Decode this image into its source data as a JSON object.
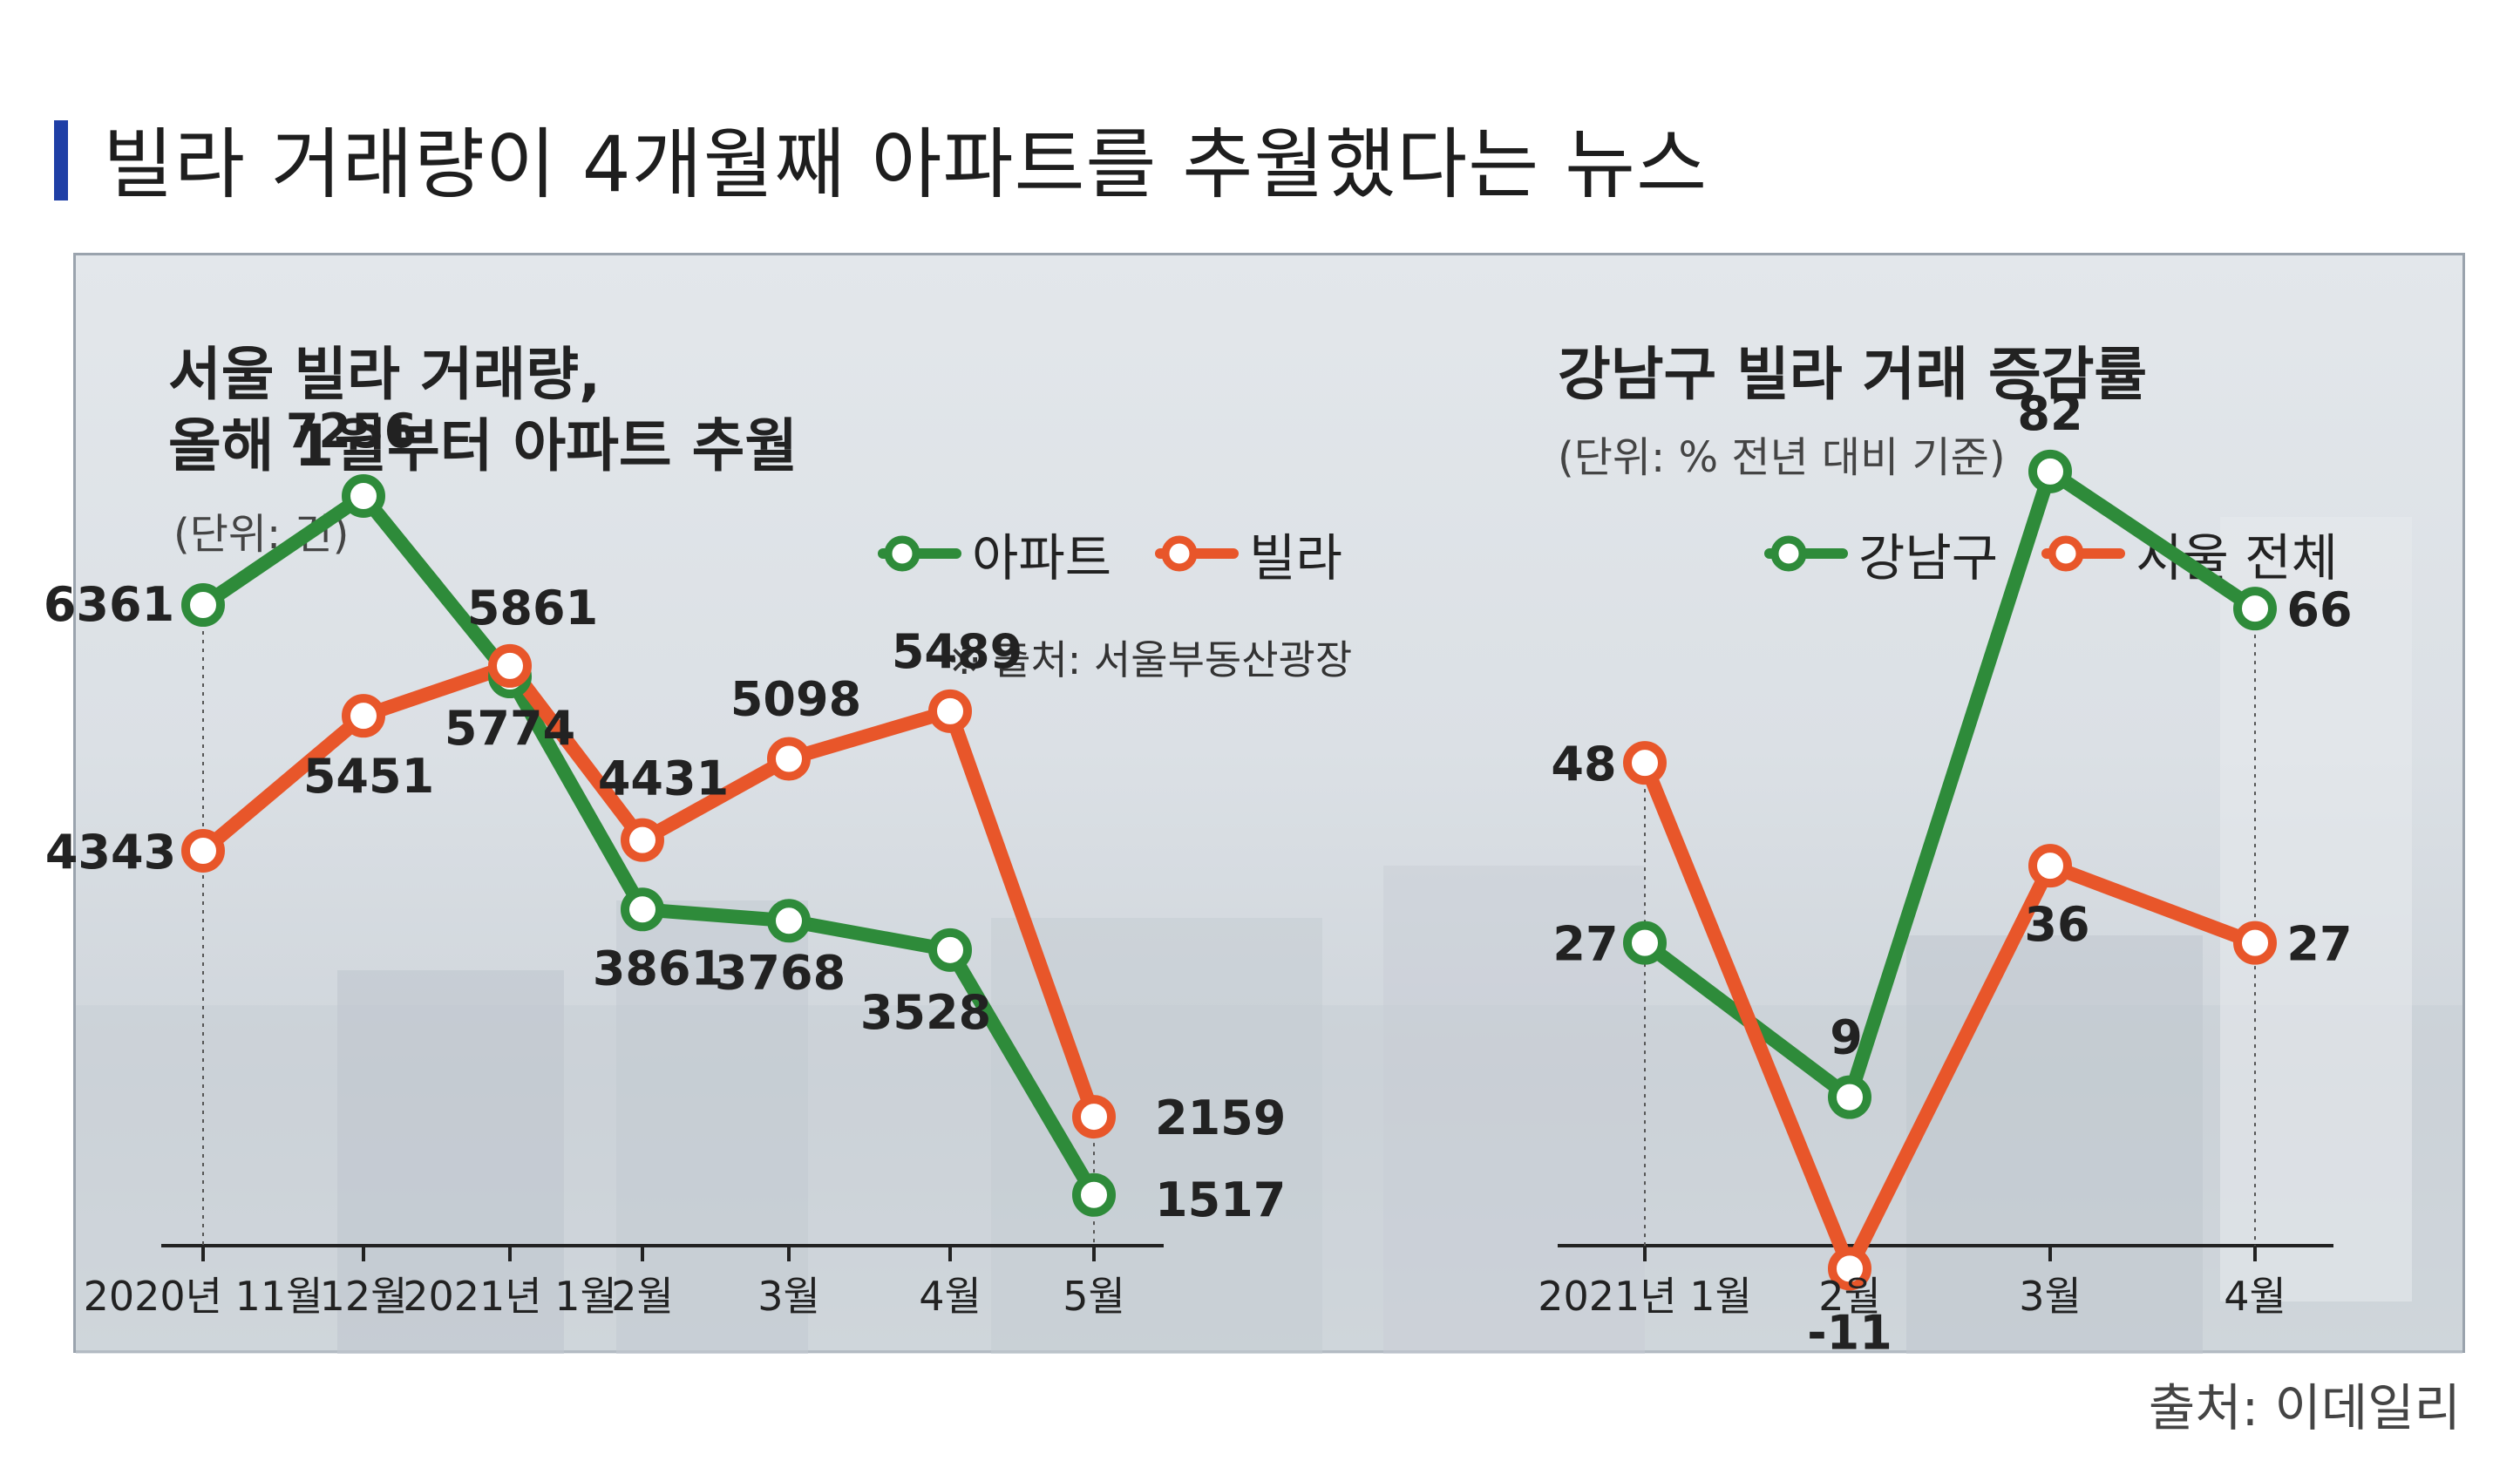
{
  "title": "빌라 거래량이 4개월째 아파트를 추월했다는 뉴스",
  "source": "출처: 이데일리",
  "colors": {
    "apartment": "#2e8b3a",
    "villa": "#e8562a",
    "accent_bar": "#1f3fa6",
    "axis": "#222222",
    "guide": "#555555"
  },
  "chart_data": [
    {
      "type": "line",
      "title_line1": "서울 빌라 거래량,",
      "title_line2": "올해 1월부터 아파트 추월",
      "unit": "(단위: 건)",
      "source_note": "※ 출처: 서울부동산광장",
      "categories": [
        "2020년 11월",
        "12월",
        "2021년 1월",
        "2월",
        "3월",
        "4월",
        "5월"
      ],
      "series": [
        {
          "name": "아파트",
          "color": "#2e8b3a",
          "values": [
            6361,
            7256,
            5774,
            3861,
            3768,
            3528,
            1517
          ]
        },
        {
          "name": "빌라",
          "color": "#e8562a",
          "values": [
            4343,
            5451,
            5861,
            4431,
            5098,
            5489,
            2159
          ]
        }
      ],
      "data_labels": {
        "아파트": [
          "6361",
          "7256",
          "5774",
          "3861",
          "3768",
          "3528",
          "1517"
        ],
        "빌라": [
          "4343",
          "5451",
          "5861",
          "4431",
          "5098",
          "5489",
          "2159"
        ]
      },
      "ylim": [
        1000,
        7800
      ],
      "grid": false,
      "legend_position": "top-right"
    },
    {
      "type": "line",
      "title_line1": "강남구 빌라 거래 증감률",
      "unit": "(단위: % 전년 대비 기준)",
      "categories": [
        "2021년 1월",
        "2월",
        "3월",
        "4월"
      ],
      "series": [
        {
          "name": "강남구",
          "color": "#2e8b3a",
          "values": [
            27,
            9,
            82,
            66
          ]
        },
        {
          "name": "서울 전체",
          "color": "#e8562a",
          "values": [
            48,
            -11,
            36,
            27
          ]
        }
      ],
      "data_labels": {
        "강남구": [
          "27",
          "9",
          "82",
          "66"
        ],
        "서울 전체": [
          "48",
          "-11",
          "36",
          "27"
        ]
      },
      "ylim": [
        -25,
        95
      ],
      "grid": false,
      "legend_position": "top-right"
    }
  ]
}
